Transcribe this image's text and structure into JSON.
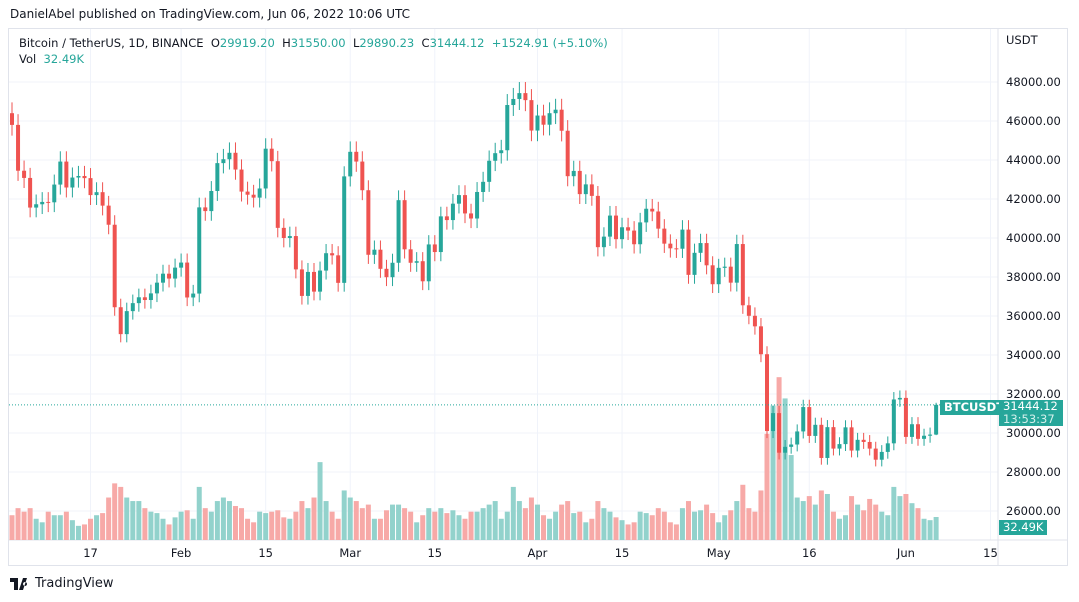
{
  "published_line": "DanielAbel published on TradingView.com, Jun 06, 2022 10:06 UTC",
  "legend": {
    "symbol": "Bitcoin / TetherUS, 1D, BINANCE",
    "o_label": "O",
    "o": "29919.20",
    "h_label": "H",
    "h": "31550.00",
    "l_label": "L",
    "l": "29890.23",
    "c_label": "C",
    "c": "31444.12",
    "change": "+1524.91 (+5.10%)",
    "vol_label": "Vol",
    "vol": "32.49K"
  },
  "currency": "USDT",
  "last_price_tag": {
    "symbol": "BTCUSDT",
    "price": "31444.12",
    "countdown": "13:53:37"
  },
  "volume_tag": "32.49K",
  "footer_brand": "TradingView",
  "colors": {
    "up": "#26a69a",
    "down": "#ef5350",
    "up_vol": "#92d2cc",
    "down_vol": "#f7a9a7",
    "grid": "#f0f3fa"
  },
  "chart_data": {
    "type": "candlestick",
    "start_date": "2022-01-04",
    "first_open": 46400,
    "closes": [
      45800,
      43450,
      43080,
      41560,
      41730,
      41850,
      41830,
      42740,
      43920,
      42590,
      43100,
      43180,
      43070,
      42200,
      42350,
      41660,
      40680,
      36450,
      35070,
      36250,
      36660,
      36960,
      36820,
      37160,
      37710,
      38170,
      37920,
      38480,
      38740,
      36950,
      37150,
      41570,
      41380,
      42410,
      43840,
      44040,
      44370,
      43510,
      42380,
      42220,
      42070,
      42540,
      44580,
      43940,
      40520,
      40000,
      40100,
      38390,
      37030,
      38260,
      37250,
      38330,
      39220,
      39110,
      37700,
      43160,
      44420,
      43920,
      42450,
      39140,
      39400,
      38420,
      37990,
      38730,
      41940,
      39420,
      38730,
      38810,
      37780,
      39670,
      39280,
      41110,
      40920,
      41760,
      42200,
      41260,
      41000,
      42360,
      42880,
      43960,
      44350,
      44500,
      46820,
      47130,
      47430,
      47070,
      45510,
      46280,
      45810,
      46400,
      46580,
      45500,
      43170,
      43440,
      42250,
      42750,
      42160,
      39530,
      40070,
      41150,
      39940,
      40550,
      40380,
      39680,
      40800,
      41500,
      41360,
      40480,
      39710,
      39470,
      39450,
      40430,
      38110,
      39240,
      39740,
      38600,
      37630,
      38470,
      38530,
      37710,
      39690,
      36550,
      36010,
      35470,
      34040,
      30100,
      31020,
      28990,
      29290,
      29410,
      30080,
      31330,
      29850,
      30420,
      28720,
      30300,
      29200,
      29430,
      30290,
      29100,
      29650,
      29540,
      29200,
      28630,
      29030,
      29470,
      31720,
      31800,
      29800,
      30450,
      29700,
      29860,
      29919.2,
      31444.12
    ],
    "volumes_k": [
      35,
      45,
      40,
      45,
      30,
      25,
      40,
      35,
      35,
      40,
      28,
      20,
      22,
      30,
      35,
      38,
      60,
      80,
      75,
      60,
      55,
      55,
      45,
      40,
      38,
      30,
      22,
      32,
      40,
      42,
      30,
      75,
      45,
      40,
      55,
      60,
      55,
      48,
      45,
      30,
      25,
      40,
      38,
      40,
      42,
      32,
      30,
      40,
      55,
      45,
      60,
      110,
      55,
      40,
      30,
      70,
      60,
      55,
      45,
      50,
      30,
      30,
      42,
      50,
      50,
      45,
      40,
      25,
      35,
      45,
      40,
      45,
      38,
      42,
      35,
      30,
      40,
      40,
      45,
      50,
      55,
      30,
      40,
      75,
      55,
      45,
      60,
      50,
      35,
      30,
      40,
      50,
      55,
      38,
      40,
      25,
      30,
      55,
      45,
      40,
      32,
      28,
      22,
      25,
      40,
      38,
      35,
      45,
      40,
      25,
      22,
      45,
      55,
      40,
      42,
      50,
      38,
      25,
      35,
      42,
      55,
      78,
      45,
      40,
      70,
      150,
      190,
      230,
      200,
      120,
      60,
      55,
      62,
      50,
      70,
      65,
      40,
      30,
      35,
      62,
      50,
      42,
      58,
      50,
      40,
      35,
      75,
      62,
      65,
      52,
      45,
      30,
      28,
      32.49
    ],
    "last_high": 31550.0,
    "last_low": 29890.23,
    "y_ticks": [
      "48000.00",
      "46000.00",
      "44000.00",
      "42000.00",
      "40000.00",
      "38000.00",
      "36000.00",
      "34000.00",
      "32000.00",
      "30000.00",
      "28000.00",
      "26000.00"
    ],
    "x_ticks": [
      {
        "label": "17",
        "date": "2022-01-17"
      },
      {
        "label": "Feb",
        "date": "2022-02-01"
      },
      {
        "label": "15",
        "date": "2022-02-15"
      },
      {
        "label": "Mar",
        "date": "2022-03-01"
      },
      {
        "label": "15",
        "date": "2022-03-15"
      },
      {
        "label": "Apr",
        "date": "2022-04-01"
      },
      {
        "label": "15",
        "date": "2022-04-15"
      },
      {
        "label": "May",
        "date": "2022-05-01"
      },
      {
        "label": "16",
        "date": "2022-05-16"
      },
      {
        "label": "Jun",
        "date": "2022-06-01"
      },
      {
        "label": "15",
        "date": "2022-06-15"
      }
    ],
    "grid": true,
    "y_axis_position": "right"
  }
}
